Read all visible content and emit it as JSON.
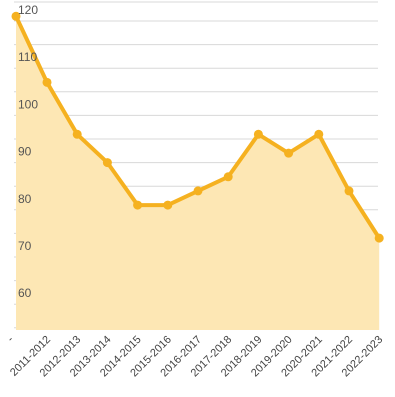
{
  "chart_data": {
    "type": "area",
    "categories": [
      "2011-2012",
      "2012-2013",
      "2013-2014",
      "2014-2015",
      "2015-2016",
      "2016-2017",
      "2017-2018",
      "2018-2019",
      "2019-2020",
      "2020-2021",
      "2021-2022",
      "2022-2023"
    ],
    "leading_value": 121,
    "series": [
      {
        "values": [
          107,
          96,
          90,
          81,
          81,
          84,
          87,
          96,
          92,
          96,
          84,
          74
        ]
      }
    ],
    "yticks": [
      60,
      70,
      80,
      90,
      100,
      110,
      120
    ],
    "ylim": [
      50,
      122
    ],
    "grid": true,
    "colors": {
      "line": "#f5b120",
      "fill": "#fde7b4",
      "grid": "#d8d8d8",
      "label": "#444444"
    }
  }
}
